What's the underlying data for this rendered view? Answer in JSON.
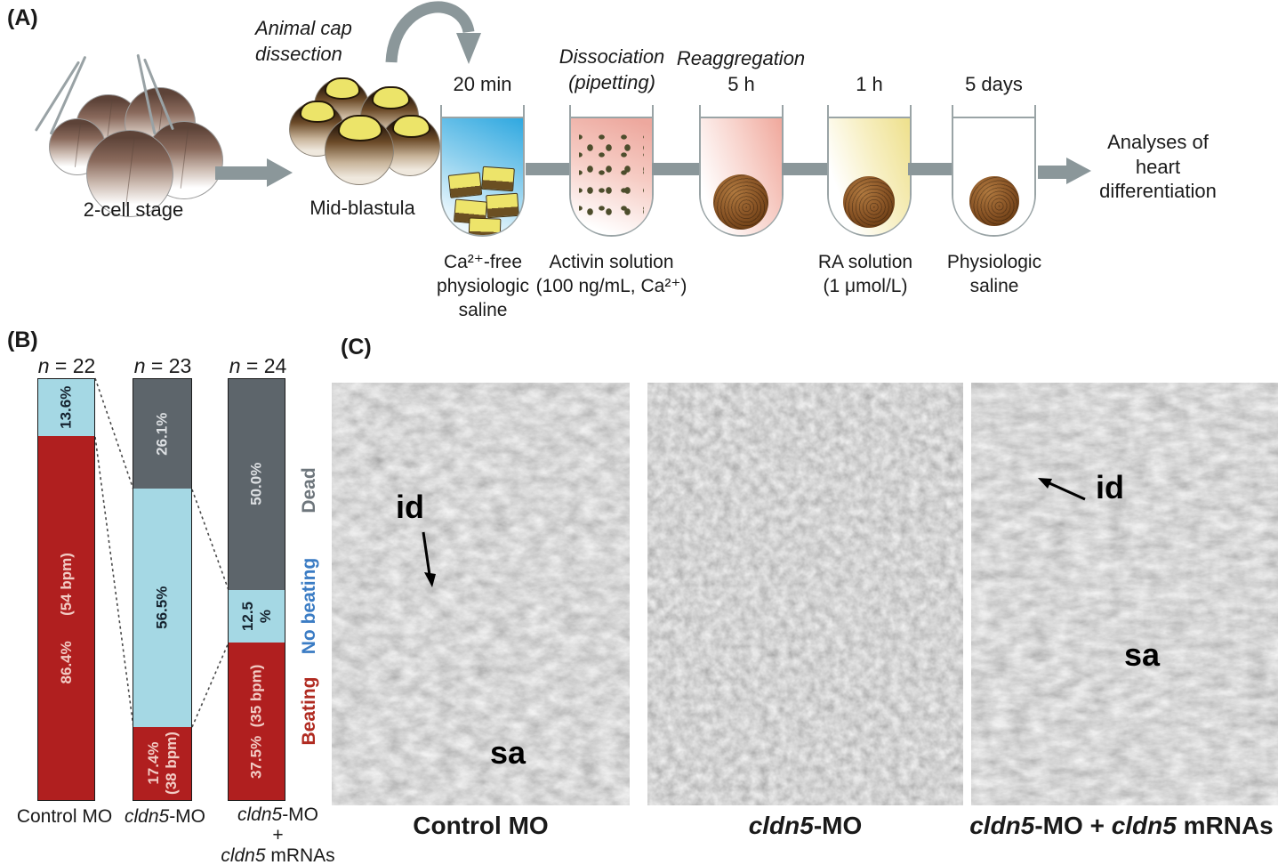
{
  "panel_a": {
    "label": "(A)",
    "dissection_label": "Animal cap dissection",
    "stage_2cell": "2-cell stage",
    "stage_midblastula": "Mid-blastula",
    "tube1_time": "20 min",
    "tube1_solution": "Ca²⁺-free physiologic saline",
    "tube2_process": "Dissociation (pipetting)",
    "tube2_solution": "Activin solution (100 ng/mL, Ca²⁺)",
    "tube3_process": "Reaggregation",
    "tube3_time": "5 h",
    "tube4_time": "1 h",
    "tube4_solution": "RA solution (1 μmol/L)",
    "tube5_time": "5 days",
    "tube5_solution": "Physiologic saline",
    "outcome": "Analyses of heart differentiation"
  },
  "panel_b": {
    "label": "(B)",
    "n_labels": [
      {
        "var": "n",
        "rest": " = 22"
      },
      {
        "var": "n",
        "rest": " = 23"
      },
      {
        "var": "n",
        "rest": " = 24"
      }
    ],
    "segment_labels": {
      "bar1_no_beating": "13.6%",
      "bar1_beating": "86.4%      (54 bpm)",
      "bar2_dead": "26.1%",
      "bar2_no_beating": "56.5%",
      "bar2_beating_line1": "17.4%",
      "bar2_beating_line2": "(38 bpm)",
      "bar3_dead": "50.0%",
      "bar3_no_beating_line1": "12.5",
      "bar3_no_beating_line2": "%",
      "bar3_beating": "37.5%  (35 bpm)"
    },
    "legend": {
      "dead": "Dead",
      "no_beating": "No beating",
      "beating": "Beating"
    },
    "x_labels": {
      "bar1": "Control MO",
      "bar2_gene": "cldn5",
      "bar2_rest": "-MO",
      "bar3_line1_gene": "cldn5",
      "bar3_line1_rest": "-MO",
      "bar3_line2": "+",
      "bar3_line3_gene": "cldn5",
      "bar3_line3_rest": " mRNAs"
    }
  },
  "panel_c": {
    "label": "(C)",
    "marker_id": "id",
    "marker_sa": "sa",
    "captions": {
      "img1": "Control MO",
      "img2_gene": "cldn5",
      "img2_rest": "-MO",
      "img3_gene1": "cldn5",
      "img3_mid": "-MO + ",
      "img3_gene2": "cldn5",
      "img3_rest": " mRNAs"
    }
  },
  "chart_data": {
    "type": "bar",
    "stacked": true,
    "categories": [
      "Control MO",
      "cldn5-MO",
      "cldn5-MO + cldn5 mRNAs"
    ],
    "sample_sizes": [
      22,
      23,
      24
    ],
    "series": [
      {
        "name": "Beating",
        "values": [
          86.4,
          17.4,
          37.5
        ],
        "beat_rates_bpm": [
          54,
          38,
          35
        ],
        "color": "#b01f1f"
      },
      {
        "name": "No beating",
        "values": [
          13.6,
          56.5,
          12.5
        ],
        "color": "#a5d8e4"
      },
      {
        "name": "Dead",
        "values": [
          0,
          26.1,
          50.0
        ],
        "color": "#5d656b"
      }
    ],
    "ylim": [
      0,
      100
    ],
    "unit": "%",
    "legend_position": "right"
  },
  "colors": {
    "beating_red": "#b01f1f",
    "no_beating_blue": "#a5d8e4",
    "dead_gray": "#5d656b",
    "legend_beating_text": "#b02a20",
    "legend_no_beating_text": "#3b7cc4",
    "legend_dead_text": "#6e767c",
    "flow_arrow_gray": "#8b979a",
    "saline_blue": "#2fa8e0",
    "activin_pink": "#eda89e",
    "ra_yellow": "#eee08c",
    "aggregate_brown": "#8a5526"
  }
}
